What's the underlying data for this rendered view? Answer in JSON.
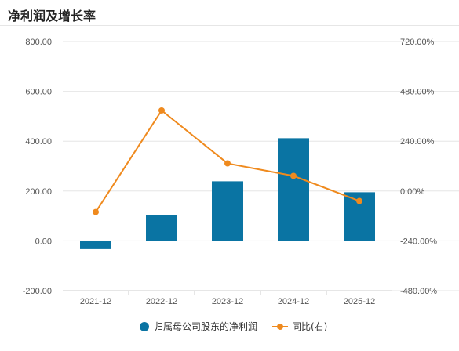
{
  "header": {
    "title": "净利润及增长率"
  },
  "chart_data": {
    "type": "bar",
    "categories": [
      "2021-12",
      "2022-12",
      "2023-12",
      "2024-12",
      "2025-12"
    ],
    "series": [
      {
        "name": "归属母公司股东的净利润",
        "type": "bar",
        "axis": "left",
        "values": [
          -33,
          102,
          239,
          412,
          195
        ]
      },
      {
        "name": "同比(右)",
        "type": "line",
        "axis": "right",
        "values": [
          -101.0,
          388.0,
          133.0,
          73.0,
          -48.0
        ]
      }
    ],
    "y_left": {
      "min": -200,
      "max": 800,
      "ticks": [
        "800.00",
        "600.00",
        "400.00",
        "200.00",
        "0.00",
        "-200.00"
      ]
    },
    "y_right": {
      "min": -480,
      "max": 720,
      "ticks": [
        "720.00%",
        "480.00%",
        "240.00%",
        "0.00%",
        "-240.00%",
        "-480.00%"
      ]
    },
    "legend": {
      "placement": "bottom-center"
    },
    "colors": {
      "bar": "#0a74a3",
      "line": "#ef8a1e",
      "grid": "#e6e6e6"
    }
  }
}
